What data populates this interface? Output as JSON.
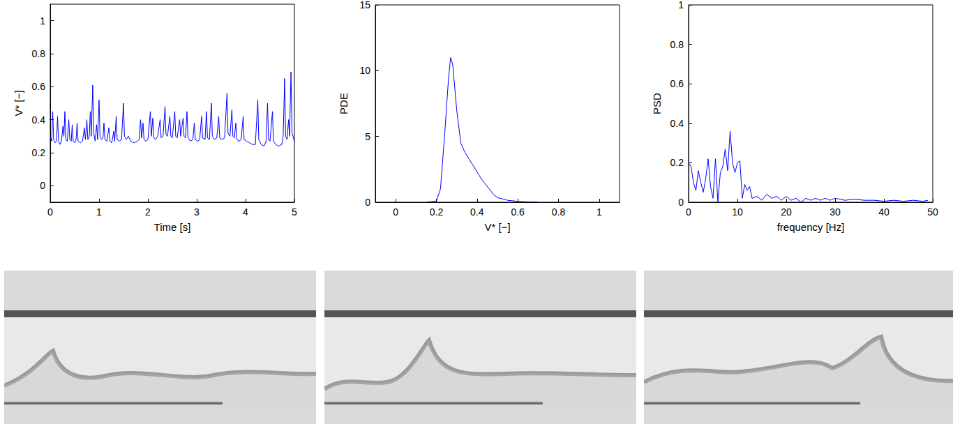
{
  "chart_data": [
    {
      "type": "line",
      "xlabel": "Time [s]",
      "ylabel": "V* [−]",
      "color": "#0000ff",
      "xlim": [
        0,
        5
      ],
      "xticks": [
        0,
        1,
        2,
        3,
        4,
        5
      ],
      "ylim": [
        -0.1,
        1.1
      ],
      "yticks": [
        0,
        0.2,
        0.4,
        0.6,
        0.8,
        1
      ],
      "x": [
        0,
        0.03,
        0.05,
        0.07,
        0.1,
        0.13,
        0.15,
        0.17,
        0.2,
        0.23,
        0.26,
        0.28,
        0.3,
        0.32,
        0.35,
        0.38,
        0.4,
        0.43,
        0.45,
        0.47,
        0.5,
        0.53,
        0.55,
        0.57,
        0.62,
        0.66,
        0.7,
        0.72,
        0.75,
        0.77,
        0.8,
        0.82,
        0.84,
        0.87,
        0.89,
        0.92,
        0.95,
        0.97,
        1.0,
        1.02,
        1.05,
        1.08,
        1.1,
        1.12,
        1.16,
        1.2,
        1.22,
        1.26,
        1.3,
        1.32,
        1.35,
        1.37,
        1.42,
        1.46,
        1.5,
        1.52,
        1.56,
        1.6,
        1.65,
        1.72,
        1.78,
        1.82,
        1.85,
        1.87,
        1.9,
        1.92,
        1.96,
        2.0,
        2.05,
        2.07,
        2.1,
        2.12,
        2.16,
        2.2,
        2.25,
        2.27,
        2.31,
        2.35,
        2.37,
        2.4,
        2.45,
        2.47,
        2.5,
        2.55,
        2.57,
        2.6,
        2.65,
        2.67,
        2.72,
        2.74,
        2.77,
        2.8,
        2.82,
        2.87,
        2.92,
        2.95,
        2.97,
        3.02,
        3.06,
        3.1,
        3.12,
        3.17,
        3.2,
        3.22,
        3.26,
        3.3,
        3.32,
        3.36,
        3.41,
        3.45,
        3.47,
        3.52,
        3.57,
        3.62,
        3.64,
        3.68,
        3.72,
        3.74,
        3.77,
        3.8,
        3.82,
        3.87,
        3.91,
        3.95,
        3.97,
        4.02,
        4.08,
        4.14,
        4.2,
        4.25,
        4.27,
        4.32,
        4.38,
        4.42,
        4.45,
        4.47,
        4.5,
        4.55,
        4.57,
        4.62,
        4.68,
        4.74,
        4.77,
        4.8,
        4.82,
        4.85,
        4.88,
        4.9,
        4.93,
        4.95,
        4.97,
        5.0
      ],
      "values": [
        0.3,
        0.27,
        0.45,
        0.28,
        0.26,
        0.27,
        0.42,
        0.27,
        0.25,
        0.27,
        0.36,
        0.3,
        0.45,
        0.28,
        0.27,
        0.4,
        0.28,
        0.27,
        0.37,
        0.27,
        0.26,
        0.28,
        0.38,
        0.27,
        0.26,
        0.27,
        0.35,
        0.28,
        0.4,
        0.28,
        0.3,
        0.45,
        0.3,
        0.61,
        0.32,
        0.27,
        0.37,
        0.28,
        0.52,
        0.3,
        0.28,
        0.29,
        0.38,
        0.28,
        0.27,
        0.35,
        0.27,
        0.26,
        0.33,
        0.27,
        0.42,
        0.28,
        0.27,
        0.28,
        0.5,
        0.3,
        0.28,
        0.3,
        0.27,
        0.26,
        0.27,
        0.28,
        0.4,
        0.29,
        0.38,
        0.28,
        0.27,
        0.28,
        0.45,
        0.3,
        0.41,
        0.29,
        0.28,
        0.3,
        0.4,
        0.29,
        0.3,
        0.48,
        0.31,
        0.3,
        0.42,
        0.3,
        0.29,
        0.45,
        0.3,
        0.29,
        0.4,
        0.3,
        0.41,
        0.3,
        0.29,
        0.45,
        0.29,
        0.27,
        0.28,
        0.38,
        0.28,
        0.27,
        0.28,
        0.42,
        0.29,
        0.28,
        0.45,
        0.29,
        0.28,
        0.5,
        0.3,
        0.28,
        0.29,
        0.42,
        0.29,
        0.28,
        0.29,
        0.56,
        0.32,
        0.3,
        0.46,
        0.3,
        0.29,
        0.38,
        0.28,
        0.27,
        0.28,
        0.42,
        0.28,
        0.27,
        0.26,
        0.25,
        0.25,
        0.52,
        0.28,
        0.25,
        0.24,
        0.27,
        0.5,
        0.28,
        0.27,
        0.45,
        0.27,
        0.25,
        0.24,
        0.25,
        0.3,
        0.65,
        0.3,
        0.28,
        0.4,
        0.3,
        0.69,
        0.32,
        0.3,
        0.27
      ]
    },
    {
      "type": "line",
      "xlabel": "V* [−]",
      "ylabel": "PDE",
      "color": "#0000ff",
      "xlim": [
        -0.1,
        1.1
      ],
      "xticks": [
        0,
        0.2,
        0.4,
        0.6,
        0.8,
        1
      ],
      "ylim": [
        0,
        15
      ],
      "yticks": [
        0,
        5,
        10,
        15
      ],
      "x": [
        0.15,
        0.2,
        0.22,
        0.24,
        0.26,
        0.27,
        0.28,
        0.3,
        0.32,
        0.34,
        0.36,
        0.38,
        0.4,
        0.42,
        0.44,
        0.46,
        0.48,
        0.5,
        0.55,
        0.6,
        0.65,
        0.7
      ],
      "values": [
        0,
        0.1,
        1,
        5,
        9.5,
        11,
        10.5,
        7,
        4.5,
        3.8,
        3.3,
        2.8,
        2.3,
        1.8,
        1.4,
        1,
        0.6,
        0.35,
        0.15,
        0.07,
        0.03,
        0.01
      ]
    },
    {
      "type": "line",
      "xlabel": "frequency [Hz]",
      "ylabel": "PSD",
      "color": "#0000ff",
      "xlim": [
        0,
        50
      ],
      "xticks": [
        0,
        10,
        20,
        30,
        40,
        50
      ],
      "ylim": [
        0,
        1
      ],
      "yticks": [
        0,
        0.2,
        0.4,
        0.6,
        0.8,
        1
      ],
      "x": [
        0,
        0.5,
        1,
        1.5,
        2,
        2.5,
        3,
        3.5,
        4,
        4.5,
        5,
        5.5,
        6,
        6.5,
        7,
        7.5,
        8,
        8.5,
        9,
        9.5,
        10,
        10.5,
        11,
        11.5,
        12,
        12.5,
        13,
        14,
        15,
        16,
        17,
        18,
        19,
        20,
        21,
        22,
        23,
        24,
        25,
        26,
        27,
        28,
        29,
        30,
        32,
        34,
        36,
        38,
        40,
        42,
        44,
        46,
        48,
        49
      ],
      "values": [
        0.2,
        0.18,
        0.1,
        0.06,
        0.16,
        0.1,
        0.05,
        0.12,
        0.22,
        0.08,
        0.02,
        0.22,
        0,
        0.15,
        0.18,
        0.27,
        0.16,
        0.36,
        0.2,
        0.15,
        0.2,
        0.21,
        0.02,
        0.09,
        0.06,
        0.08,
        0.02,
        0.03,
        0.01,
        0.04,
        0.02,
        0.03,
        0.01,
        0.03,
        0.01,
        0.02,
        0,
        0.02,
        0.01,
        0.02,
        0.01,
        0.02,
        0.01,
        0.02,
        0.01,
        0.015,
        0.01,
        0.01,
        0.005,
        0.01,
        0.005,
        0.01,
        0.005,
        0.01
      ]
    }
  ]
}
